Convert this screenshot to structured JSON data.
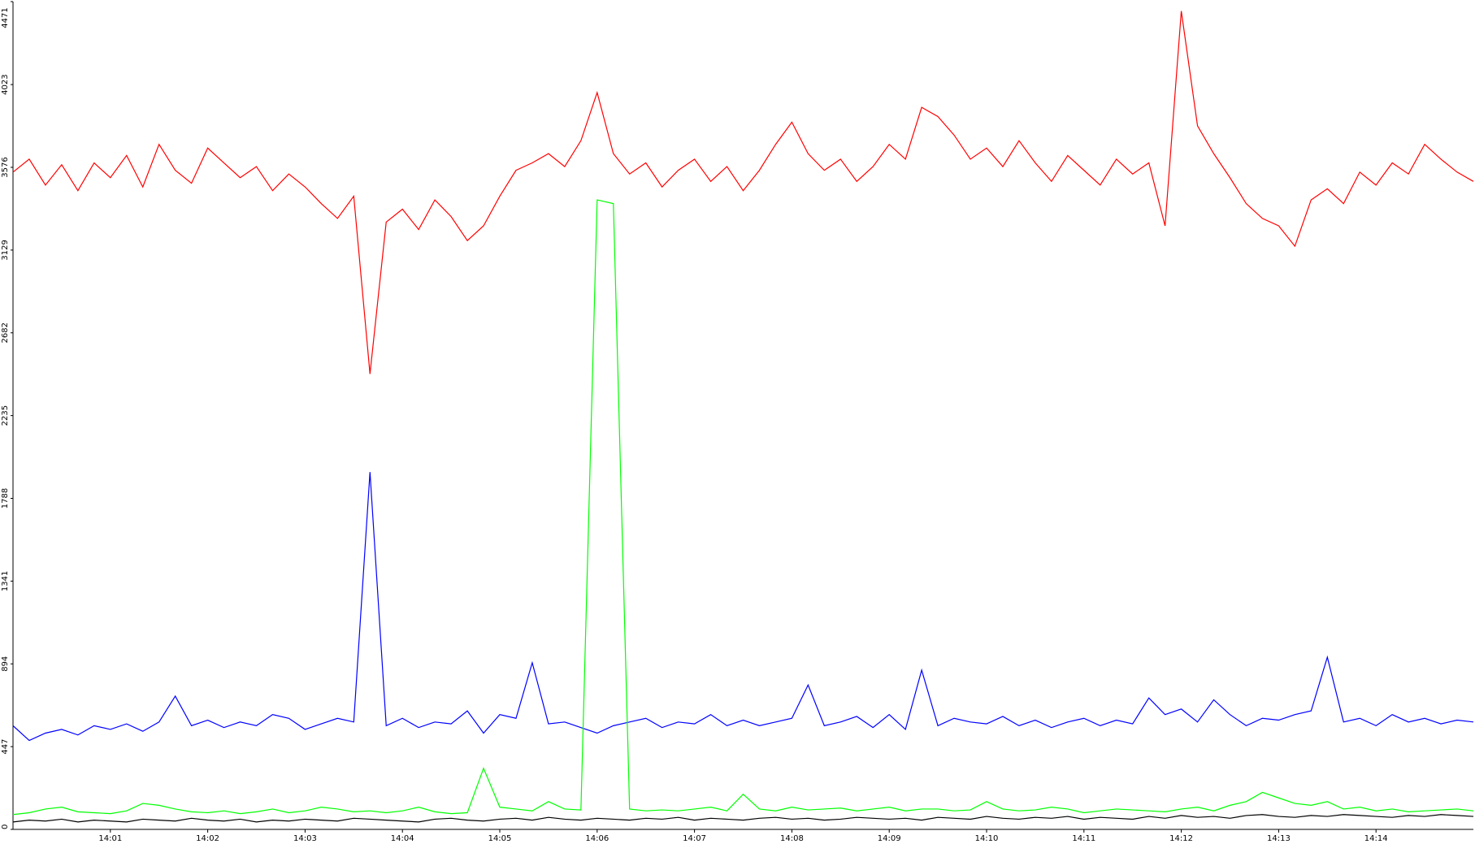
{
  "chart_data": {
    "type": "line",
    "categories": [
      null,
      null,
      null,
      null,
      null,
      null,
      "14:01",
      null,
      null,
      null,
      null,
      null,
      "14:02",
      null,
      null,
      null,
      null,
      null,
      "14:03",
      null,
      null,
      null,
      null,
      null,
      "14:04",
      null,
      null,
      null,
      null,
      null,
      "14:05",
      null,
      null,
      null,
      null,
      null,
      "14:06",
      null,
      null,
      null,
      null,
      null,
      "14:07",
      null,
      null,
      null,
      null,
      null,
      "14:08",
      null,
      null,
      null,
      null,
      null,
      "14:09",
      null,
      null,
      null,
      null,
      null,
      "14:10",
      null,
      null,
      null,
      null,
      null,
      "14:11",
      null,
      null,
      null,
      null,
      null,
      "14:12",
      null,
      null,
      null,
      null,
      null,
      "14:13",
      null,
      null,
      null,
      null,
      null,
      "14:14",
      null,
      null,
      null,
      null,
      null,
      null
    ],
    "series": [
      {
        "color": "#ff0000",
        "values": [
          3550,
          3620,
          3480,
          3590,
          3450,
          3600,
          3520,
          3640,
          3470,
          3700,
          3560,
          3490,
          3680,
          3600,
          3520,
          3580,
          3450,
          3540,
          3470,
          3380,
          3300,
          3420,
          2460,
          3280,
          3350,
          3240,
          3400,
          3310,
          3180,
          3260,
          3420,
          3560,
          3600,
          3650,
          3580,
          3720,
          3980,
          3650,
          3540,
          3600,
          3470,
          3560,
          3620,
          3500,
          3580,
          3450,
          3560,
          3700,
          3820,
          3650,
          3560,
          3620,
          3500,
          3580,
          3700,
          3620,
          3900,
          3850,
          3750,
          3620,
          3680,
          3580,
          3720,
          3600,
          3500,
          3640,
          3560,
          3480,
          3620,
          3540,
          3600,
          3260,
          4420,
          3800,
          3650,
          3520,
          3380,
          3300,
          3260,
          3150,
          3400,
          3460,
          3380,
          3550,
          3480,
          3600,
          3540,
          3700,
          3620,
          3550,
          3500
        ]
      },
      {
        "color": "#0000ff",
        "values": [
          560,
          480,
          520,
          540,
          510,
          560,
          540,
          570,
          530,
          580,
          720,
          560,
          590,
          550,
          580,
          560,
          620,
          600,
          540,
          570,
          600,
          580,
          1930,
          560,
          600,
          550,
          580,
          570,
          640,
          520,
          620,
          600,
          900,
          570,
          580,
          550,
          520,
          560,
          580,
          600,
          550,
          580,
          570,
          620,
          560,
          590,
          560,
          580,
          600,
          780,
          560,
          580,
          610,
          550,
          620,
          540,
          860,
          560,
          600,
          580,
          570,
          610,
          560,
          590,
          550,
          580,
          600,
          560,
          590,
          570,
          710,
          620,
          650,
          580,
          700,
          620,
          560,
          600,
          590,
          620,
          640,
          930,
          580,
          600,
          560,
          620,
          580,
          600,
          570,
          590,
          580
        ]
      },
      {
        "color": "#00ff00",
        "values": [
          80,
          90,
          110,
          120,
          95,
          90,
          85,
          100,
          140,
          130,
          110,
          95,
          90,
          100,
          85,
          95,
          110,
          90,
          100,
          120,
          110,
          95,
          100,
          90,
          100,
          120,
          95,
          85,
          90,
          330,
          120,
          110,
          100,
          150,
          110,
          105,
          3400,
          3380,
          110,
          100,
          105,
          100,
          110,
          120,
          100,
          190,
          110,
          100,
          120,
          105,
          110,
          115,
          100,
          110,
          120,
          100,
          110,
          110,
          100,
          105,
          150,
          110,
          100,
          105,
          120,
          110,
          90,
          100,
          110,
          105,
          100,
          95,
          110,
          120,
          100,
          130,
          150,
          200,
          170,
          140,
          130,
          150,
          110,
          120,
          100,
          110,
          95,
          100,
          105,
          110,
          100
        ]
      },
      {
        "color": "#000000",
        "values": [
          40,
          50,
          45,
          55,
          40,
          50,
          45,
          40,
          55,
          50,
          45,
          60,
          50,
          45,
          55,
          40,
          50,
          45,
          55,
          50,
          45,
          60,
          55,
          50,
          45,
          40,
          55,
          60,
          50,
          45,
          55,
          60,
          50,
          65,
          55,
          50,
          60,
          55,
          50,
          60,
          55,
          65,
          50,
          60,
          55,
          50,
          60,
          65,
          55,
          60,
          50,
          55,
          65,
          60,
          55,
          60,
          50,
          65,
          60,
          55,
          70,
          60,
          55,
          65,
          60,
          70,
          55,
          65,
          60,
          55,
          70,
          60,
          75,
          65,
          70,
          60,
          75,
          80,
          70,
          65,
          75,
          70,
          80,
          75,
          70,
          65,
          75,
          70,
          80,
          75,
          70
        ]
      }
    ],
    "ylim": [
      0,
      4471
    ],
    "yticks": [
      0,
      447,
      894,
      1341,
      1788,
      2235,
      2682,
      3129,
      3576,
      4023,
      4471
    ]
  }
}
